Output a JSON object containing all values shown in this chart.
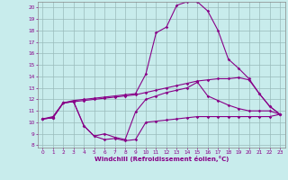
{
  "xlabel": "Windchill (Refroidissement éolien,°C)",
  "xlim": [
    -0.5,
    23.5
  ],
  "ylim": [
    7.8,
    20.5
  ],
  "yticks": [
    8,
    9,
    10,
    11,
    12,
    13,
    14,
    15,
    16,
    17,
    18,
    19,
    20
  ],
  "xticks": [
    0,
    1,
    2,
    3,
    4,
    5,
    6,
    7,
    8,
    9,
    10,
    11,
    12,
    13,
    14,
    15,
    16,
    17,
    18,
    19,
    20,
    21,
    22,
    23
  ],
  "bg_color": "#c8ecec",
  "line_color": "#880088",
  "grid_color": "#99bbbb",
  "lines": [
    {
      "x": [
        0,
        1,
        2,
        3,
        4,
        5,
        6,
        7,
        8,
        9,
        10,
        11,
        12,
        13,
        14,
        15,
        16,
        17,
        18,
        19,
        20,
        21,
        22,
        23
      ],
      "y": [
        10.3,
        10.5,
        11.7,
        11.9,
        12.0,
        12.1,
        12.2,
        12.3,
        12.4,
        12.5,
        14.2,
        17.8,
        18.3,
        20.2,
        20.5,
        20.5,
        19.7,
        18.0,
        15.5,
        14.7,
        13.8,
        12.5,
        11.4,
        10.7
      ]
    },
    {
      "x": [
        0,
        1,
        2,
        3,
        4,
        5,
        6,
        7,
        8,
        9,
        10,
        11,
        12,
        13,
        14,
        15,
        16,
        17,
        18,
        19,
        20,
        21,
        22,
        23
      ],
      "y": [
        10.3,
        10.4,
        11.7,
        11.8,
        11.9,
        12.0,
        12.1,
        12.2,
        12.3,
        12.4,
        12.6,
        12.8,
        13.0,
        13.2,
        13.4,
        13.6,
        13.7,
        13.8,
        13.8,
        13.9,
        13.7,
        12.5,
        11.4,
        10.7
      ]
    },
    {
      "x": [
        0,
        1,
        2,
        3,
        4,
        5,
        6,
        7,
        8,
        9,
        10,
        11,
        12,
        13,
        14,
        15,
        16,
        17,
        18,
        19,
        20,
        21,
        22,
        23
      ],
      "y": [
        10.3,
        10.4,
        11.7,
        11.8,
        9.7,
        8.8,
        9.0,
        8.7,
        8.5,
        10.9,
        12.0,
        12.3,
        12.6,
        12.8,
        13.0,
        13.5,
        12.3,
        11.9,
        11.5,
        11.2,
        11.0,
        11.0,
        11.0,
        10.7
      ]
    },
    {
      "x": [
        0,
        1,
        2,
        3,
        4,
        5,
        6,
        7,
        8,
        9,
        10,
        11,
        12,
        13,
        14,
        15,
        16,
        17,
        18,
        19,
        20,
        21,
        22,
        23
      ],
      "y": [
        10.3,
        10.4,
        11.7,
        11.8,
        9.7,
        8.8,
        8.5,
        8.6,
        8.4,
        8.5,
        10.0,
        10.1,
        10.2,
        10.3,
        10.4,
        10.5,
        10.5,
        10.5,
        10.5,
        10.5,
        10.5,
        10.5,
        10.5,
        10.7
      ]
    }
  ]
}
